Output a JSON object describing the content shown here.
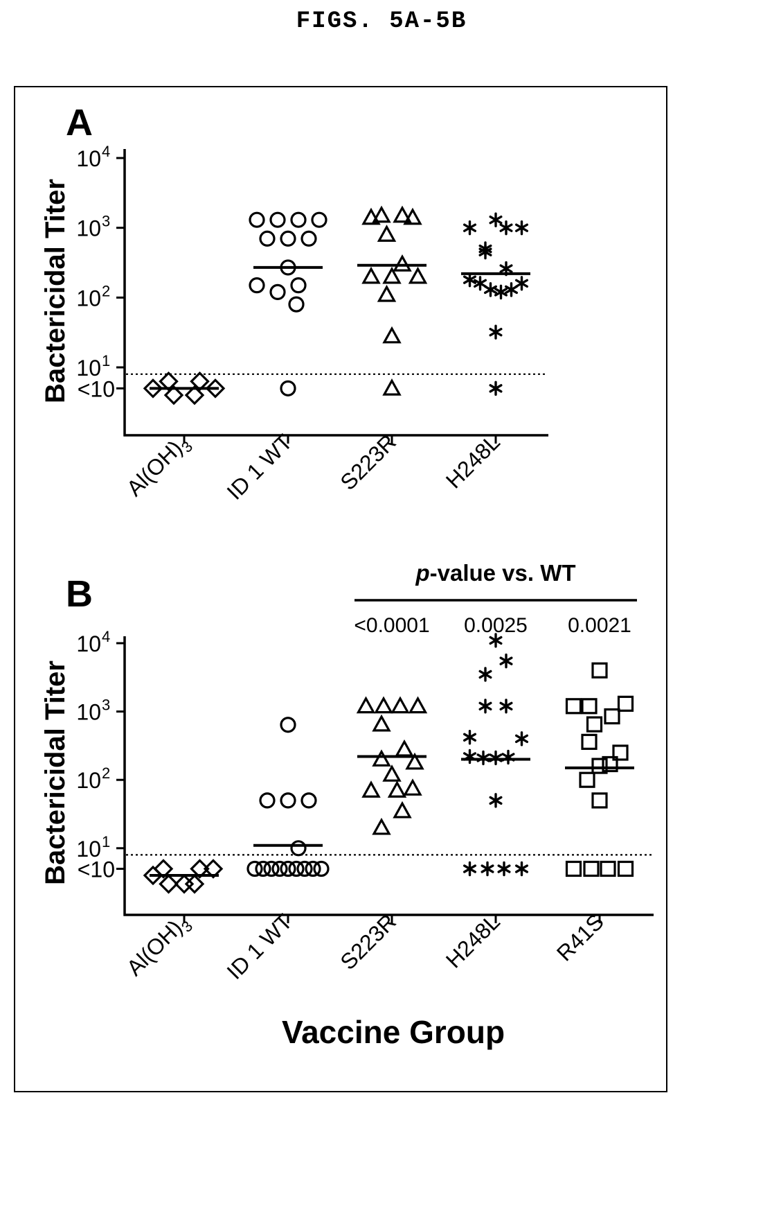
{
  "figure_title": "FIGS. 5A-5B",
  "chart_data": [
    {
      "panel": "A",
      "type": "scatter",
      "ylabel": "Bactericidal Titer",
      "yscale": "log",
      "y_ticks": [
        {
          "value": 10000,
          "base": "10",
          "exp": "4"
        },
        {
          "value": 1000,
          "base": "10",
          "exp": "3"
        },
        {
          "value": 100,
          "base": "10",
          "exp": "2"
        },
        {
          "value": 10,
          "base": "10",
          "exp": "1"
        },
        {
          "value": 5,
          "text": "<10"
        }
      ],
      "ylim": [
        1.4,
        10000
      ],
      "threshold": 8,
      "groups": [
        {
          "label": "Al(OH)",
          "label_sub": "3",
          "marker": "diamond",
          "median": 5,
          "points": [
            [
              -0.3,
              5
            ],
            [
              -0.15,
              6.3
            ],
            [
              0.15,
              6.3
            ],
            [
              0.3,
              5
            ],
            [
              -0.1,
              4
            ],
            [
              0.1,
              4
            ]
          ]
        },
        {
          "label": "ID 1 WT",
          "marker": "circle",
          "median": 270,
          "points": [
            [
              -0.3,
              1300
            ],
            [
              -0.1,
              1300
            ],
            [
              0.1,
              1300
            ],
            [
              0.3,
              1300
            ],
            [
              -0.2,
              700
            ],
            [
              0,
              700
            ],
            [
              0.2,
              700
            ],
            [
              -0.3,
              150
            ],
            [
              -0.1,
              120
            ],
            [
              0.1,
              150
            ],
            [
              0,
              270
            ],
            [
              0.08,
              80
            ],
            [
              0,
              5
            ]
          ]
        },
        {
          "label": "S223R",
          "marker": "triangle",
          "median": 290,
          "points": [
            [
              -0.2,
              1400
            ],
            [
              -0.1,
              1500
            ],
            [
              0.1,
              1500
            ],
            [
              0.2,
              1400
            ],
            [
              -0.05,
              800
            ],
            [
              -0.2,
              200
            ],
            [
              0,
              200
            ],
            [
              0.25,
              200
            ],
            [
              -0.05,
              110
            ],
            [
              0.1,
              300
            ],
            [
              0,
              28
            ],
            [
              0,
              5
            ]
          ]
        },
        {
          "label": "H248L",
          "marker": "asterisk",
          "median": 220,
          "points": [
            [
              -0.25,
              1000
            ],
            [
              0,
              1300
            ],
            [
              0.1,
              1000
            ],
            [
              0.25,
              1000
            ],
            [
              -0.1,
              500
            ],
            [
              -0.1,
              450
            ],
            [
              0.1,
              260
            ],
            [
              -0.25,
              180
            ],
            [
              -0.15,
              160
            ],
            [
              -0.05,
              130
            ],
            [
              0.05,
              120
            ],
            [
              0.15,
              130
            ],
            [
              0.25,
              160
            ],
            [
              0,
              32
            ],
            [
              0,
              5
            ]
          ]
        }
      ]
    },
    {
      "panel": "B",
      "type": "scatter",
      "xlabel": "Vaccine Group",
      "ylabel": "Bactericidal Titer",
      "yscale": "log",
      "y_ticks": [
        {
          "value": 10000,
          "base": "10",
          "exp": "4"
        },
        {
          "value": 1000,
          "base": "10",
          "exp": "3"
        },
        {
          "value": 100,
          "base": "10",
          "exp": "2"
        },
        {
          "value": 10,
          "base": "10",
          "exp": "1"
        },
        {
          "value": 5,
          "text": "<10"
        }
      ],
      "ylim": [
        1.4,
        10000
      ],
      "threshold": 8,
      "pvalue_header": {
        "italic": "p",
        "text": "-value vs. WT"
      },
      "groups": [
        {
          "label": "Al(OH)",
          "label_sub": "3",
          "marker": "diamond",
          "median": 4,
          "points": [
            [
              -0.3,
              4
            ],
            [
              -0.2,
              5
            ],
            [
              0.15,
              5
            ],
            [
              0.28,
              5
            ],
            [
              -0.15,
              3
            ],
            [
              0,
              3
            ],
            [
              0.1,
              3
            ]
          ]
        },
        {
          "label": "ID 1 WT",
          "marker": "circle",
          "median": 11,
          "points": [
            [
              0,
              640
            ],
            [
              -0.2,
              50
            ],
            [
              0,
              50
            ],
            [
              0.2,
              50
            ],
            [
              0.1,
              10
            ],
            [
              -0.32,
              5
            ],
            [
              -0.24,
              5
            ],
            [
              -0.16,
              5
            ],
            [
              -0.08,
              5
            ],
            [
              0,
              5
            ],
            [
              0.08,
              5
            ],
            [
              0.16,
              5
            ],
            [
              0.24,
              5
            ],
            [
              0.32,
              5
            ]
          ]
        },
        {
          "label": "S223R",
          "pvalue": "<0.0001",
          "marker": "triangle",
          "median": 220,
          "points": [
            [
              -0.25,
              1200
            ],
            [
              -0.08,
              1200
            ],
            [
              0.08,
              1200
            ],
            [
              0.25,
              1200
            ],
            [
              -0.1,
              650
            ],
            [
              -0.1,
              200
            ],
            [
              0.12,
              280
            ],
            [
              0.22,
              180
            ],
            [
              0,
              120
            ],
            [
              -0.2,
              70
            ],
            [
              0.05,
              70
            ],
            [
              0.2,
              75
            ],
            [
              0.1,
              35
            ],
            [
              -0.1,
              20
            ]
          ]
        },
        {
          "label": "H248L",
          "pvalue": "0.0025",
          "marker": "asterisk",
          "median": 200,
          "points": [
            [
              0,
              11000
            ],
            [
              -0.1,
              3500
            ],
            [
              0.1,
              5500
            ],
            [
              -0.1,
              1200
            ],
            [
              0.1,
              1200
            ],
            [
              -0.25,
              420
            ],
            [
              0.25,
              400
            ],
            [
              -0.25,
              220
            ],
            [
              -0.12,
              210
            ],
            [
              0,
              210
            ],
            [
              0.12,
              215
            ],
            [
              0,
              50
            ],
            [
              -0.25,
              5
            ],
            [
              -0.08,
              5
            ],
            [
              0.08,
              5
            ],
            [
              0.25,
              5
            ]
          ]
        },
        {
          "label": "R41S",
          "pvalue": "0.0021",
          "marker": "square",
          "median": 150,
          "points": [
            [
              0,
              4000
            ],
            [
              -0.25,
              1200
            ],
            [
              -0.1,
              1200
            ],
            [
              0.25,
              1300
            ],
            [
              0.12,
              850
            ],
            [
              -0.05,
              650
            ],
            [
              -0.1,
              360
            ],
            [
              0.2,
              250
            ],
            [
              0,
              160
            ],
            [
              -0.12,
              100
            ],
            [
              0,
              50
            ],
            [
              0.1,
              170
            ],
            [
              -0.25,
              5
            ],
            [
              -0.08,
              5
            ],
            [
              0.08,
              5
            ],
            [
              0.25,
              5
            ]
          ]
        }
      ]
    }
  ]
}
